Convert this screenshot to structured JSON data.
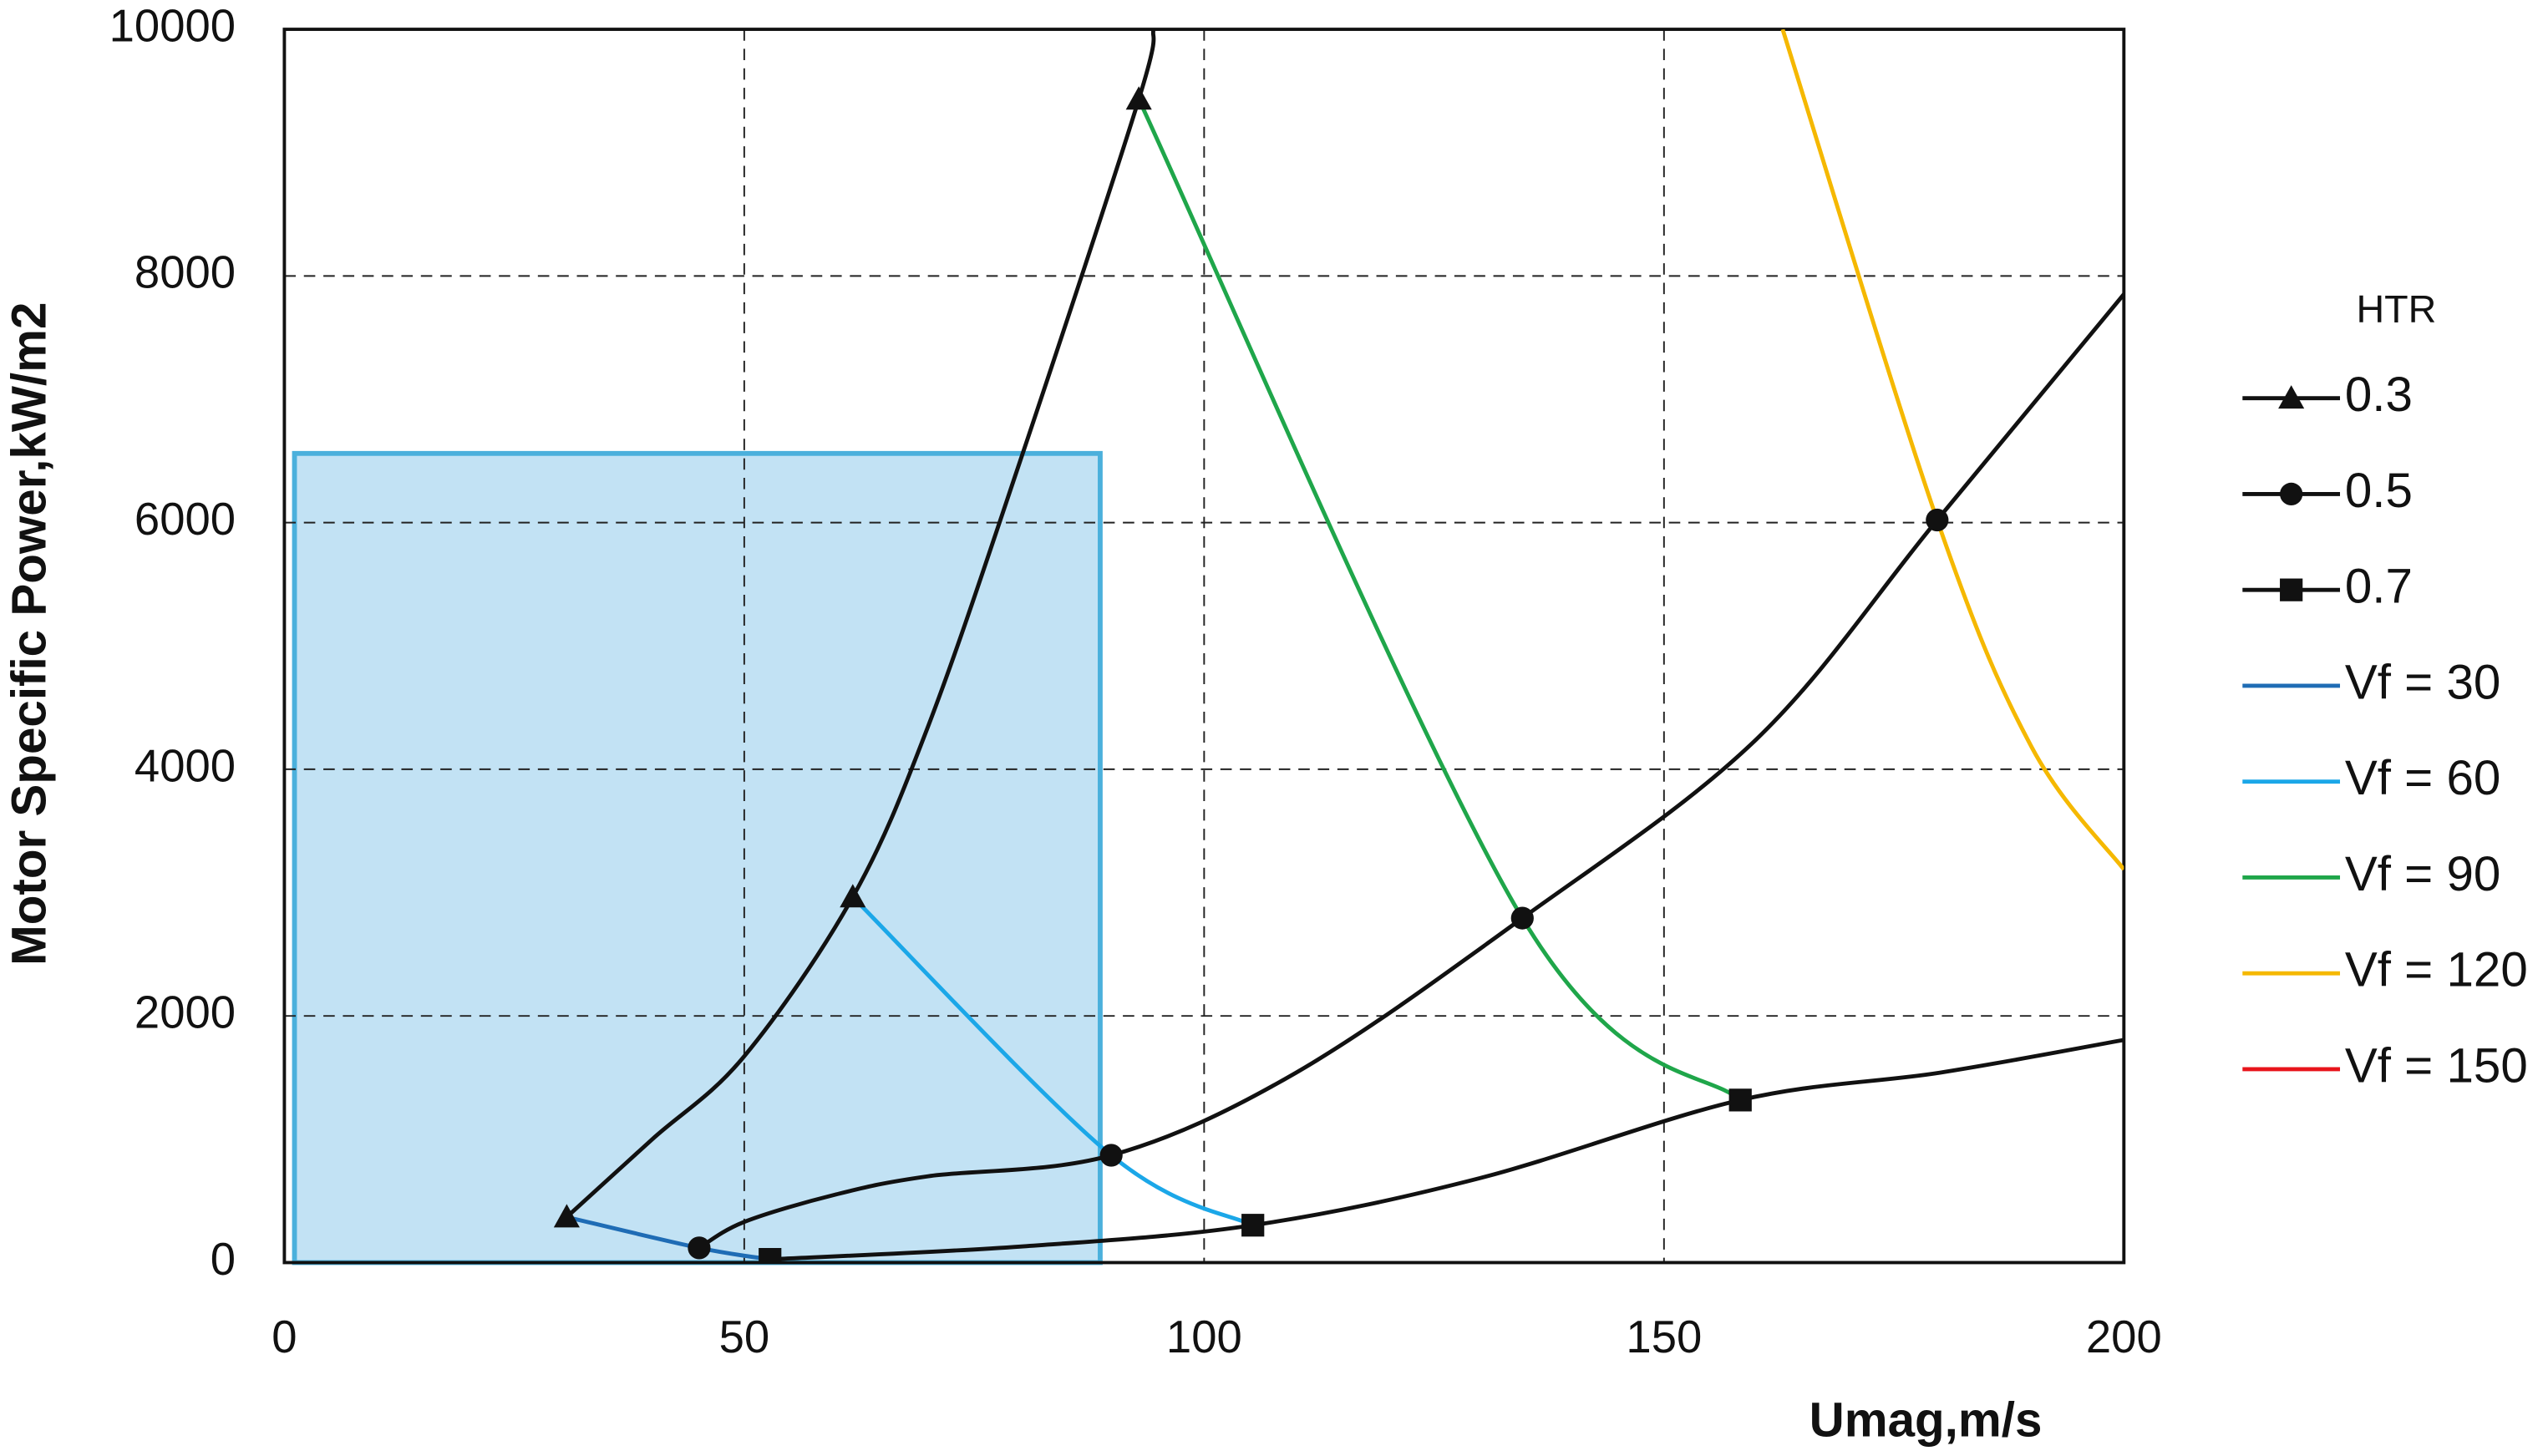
{
  "chart_data": {
    "type": "line",
    "x_label": "Umag,m/s",
    "y_label": "Motor Specific Power,kW/m2",
    "xlim": [
      0,
      200
    ],
    "xticks": [
      0,
      50,
      100,
      150,
      200
    ],
    "ylim": [
      0,
      10000
    ],
    "yticks": [
      0,
      2000,
      4000,
      6000,
      8000,
      10000
    ],
    "grid": true,
    "legend_title": "HTR",
    "legend": "right",
    "shaded_region": {
      "x": [
        1.1,
        88.7
      ],
      "y": [
        0,
        6561
      ],
      "color": "#c2e2f4",
      "edge_color": "#4bb0dc"
    },
    "series": [
      {
        "name": "0.3",
        "color": "#111111",
        "marker": "triangle",
        "x": [
          30.7,
          40,
          50,
          61.8,
          70,
          80,
          92.9,
          94.5
        ],
        "values": [
          369,
          1000,
          1673,
          2964,
          4350,
          6500,
          9433,
          10000
        ],
        "points": {
          "x": [
            30.7,
            61.8,
            92.9
          ],
          "values": [
            369,
            2964,
            9433
          ]
        }
      },
      {
        "name": "0.5",
        "color": "#111111",
        "marker": "circle",
        "x": [
          45.1,
          50,
          60,
          70,
          89.9,
          110,
          134.6,
          160,
          179.7,
          200
        ],
        "values": [
          119,
          330,
          553,
          700,
          870,
          1540,
          2793,
          4240,
          6021,
          7852
        ],
        "points": {
          "x": [
            45.1,
            89.9,
            134.6,
            179.7
          ],
          "values": [
            119,
            870,
            2793,
            6021
          ]
        }
      },
      {
        "name": "0.7",
        "color": "#111111",
        "marker": "square",
        "x": [
          52.8,
          80,
          105.3,
          130,
          158.3,
          180,
          200
        ],
        "values": [
          26,
          130,
          303,
          685,
          1318,
          1540,
          1805
        ],
        "points": {
          "x": [
            52.8,
            105.3,
            158.3
          ],
          "values": [
            26,
            303,
            1318
          ]
        }
      },
      {
        "name": "Vf = 30",
        "color": "#1f6cb5",
        "x": [
          30.7,
          45.1,
          52.8
        ],
        "values": [
          369,
          119,
          26
        ]
      },
      {
        "name": "Vf = 60",
        "color": "#1ba7e8",
        "x": [
          61.8,
          89.9,
          105.3
        ],
        "values": [
          2964,
          870,
          303
        ]
      },
      {
        "name": "Vf = 90",
        "color": "#1fa64a",
        "x": [
          92.9,
          134.6,
          158.3
        ],
        "values": [
          9433,
          2793,
          1318
        ]
      },
      {
        "name": "Vf = 120",
        "color": "#f5b800",
        "x": [
          162.9,
          179.7,
          190,
          200
        ],
        "values": [
          10000,
          6021,
          4176,
          3188
        ]
      },
      {
        "name": "Vf = 150",
        "color": "#e8141b",
        "x": [],
        "values": []
      }
    ]
  }
}
